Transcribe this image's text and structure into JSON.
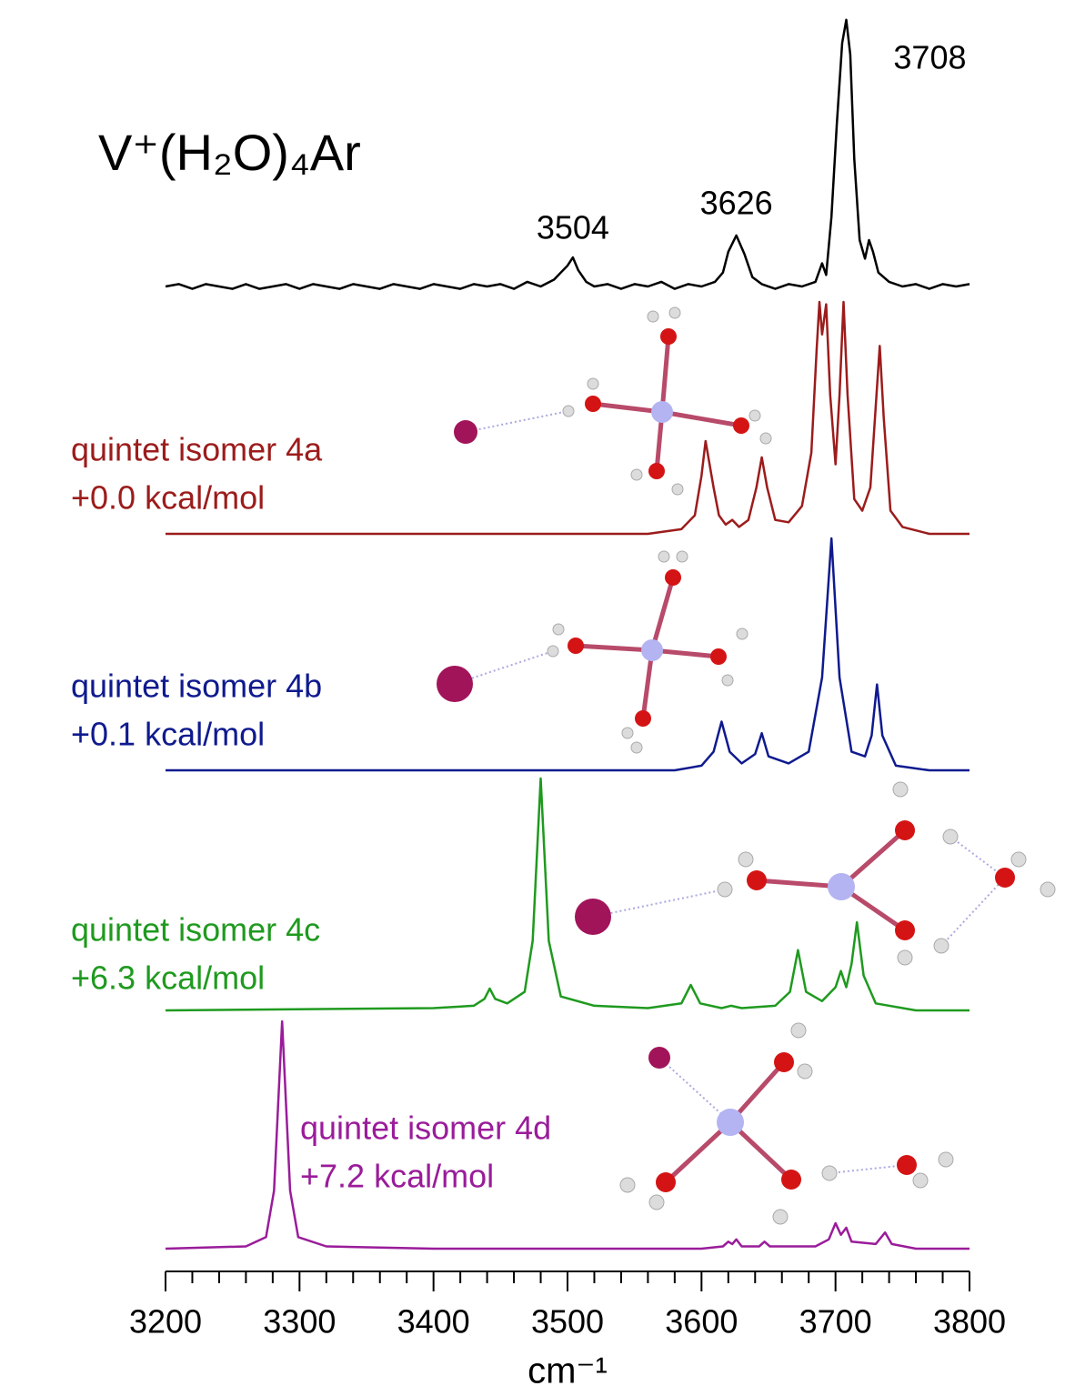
{
  "chart_data": {
    "type": "line",
    "title": "V⁺(H₂O)₄Ar",
    "xlabel": "cm⁻¹",
    "xlim": [
      3200,
      3800
    ],
    "xticks": [
      3200,
      3300,
      3400,
      3500,
      3600,
      3700,
      3800
    ],
    "xminorticks": [
      3220,
      3240,
      3260,
      3280,
      3320,
      3340,
      3360,
      3380,
      3420,
      3440,
      3460,
      3480,
      3520,
      3540,
      3560,
      3580,
      3620,
      3640,
      3660,
      3680,
      3720,
      3740,
      3760,
      3780
    ],
    "annotations": [
      {
        "x": 3504,
        "label": "3504"
      },
      {
        "x": 3626,
        "label": "3626"
      },
      {
        "x": 3708,
        "label": "3708"
      }
    ],
    "series": [
      {
        "color": "#000000",
        "x": [
          3200,
          3210,
          3220,
          3230,
          3240,
          3250,
          3260,
          3270,
          3280,
          3290,
          3300,
          3310,
          3320,
          3330,
          3340,
          3350,
          3360,
          3370,
          3380,
          3390,
          3400,
          3410,
          3420,
          3430,
          3440,
          3450,
          3460,
          3470,
          3480,
          3490,
          3495,
          3500,
          3504,
          3508,
          3514,
          3520,
          3530,
          3540,
          3550,
          3560,
          3570,
          3580,
          3590,
          3600,
          3610,
          3616,
          3620,
          3626,
          3632,
          3638,
          3645,
          3655,
          3665,
          3675,
          3685,
          3690,
          3693,
          3697,
          3701,
          3705,
          3708,
          3711,
          3714,
          3718,
          3722,
          3725,
          3728,
          3732,
          3740,
          3750,
          3760,
          3770,
          3780,
          3790,
          3800
        ],
        "values": [
          0,
          0.01,
          -0.01,
          0.01,
          0,
          -0.01,
          0.01,
          -0.01,
          0,
          0.01,
          -0.01,
          0.01,
          0,
          -0.01,
          0.01,
          0,
          -0.01,
          0.01,
          0,
          -0.01,
          0.01,
          0,
          -0.01,
          0.01,
          0,
          0.01,
          -0.01,
          0.02,
          0,
          0.03,
          0.06,
          0.09,
          0.125,
          0.07,
          0.02,
          0,
          0.01,
          -0.01,
          0.01,
          0,
          0.02,
          -0.01,
          0.01,
          0,
          0.02,
          0.06,
          0.15,
          0.22,
          0.14,
          0.04,
          0.01,
          -0.01,
          0.01,
          0,
          0.02,
          0.1,
          0.05,
          0.3,
          0.7,
          1.05,
          1.15,
          1.0,
          0.55,
          0.2,
          0.12,
          0.2,
          0.15,
          0.06,
          0.02,
          0,
          0.01,
          -0.01,
          0.01,
          0,
          0.01
        ]
      },
      {
        "name": "quintet isomer 4a",
        "energy": "+0.0 kcal/mol",
        "color": "#9c1c1c",
        "x": [
          3200,
          3560,
          3585,
          3595,
          3600,
          3603,
          3606,
          3609,
          3613,
          3618,
          3623,
          3628,
          3635,
          3641,
          3645,
          3649,
          3655,
          3665,
          3675,
          3682,
          3686,
          3688,
          3690,
          3693,
          3696,
          3700,
          3703,
          3706,
          3709,
          3714,
          3720,
          3726,
          3730,
          3733,
          3736,
          3741,
          3750,
          3770,
          3800
        ],
        "values": [
          0,
          0,
          0.02,
          0.08,
          0.25,
          0.4,
          0.3,
          0.2,
          0.08,
          0.04,
          0.06,
          0.03,
          0.06,
          0.2,
          0.33,
          0.2,
          0.06,
          0.05,
          0.12,
          0.35,
          0.8,
          1.0,
          0.86,
          0.99,
          0.6,
          0.3,
          0.6,
          1.0,
          0.6,
          0.15,
          0.1,
          0.2,
          0.55,
          0.81,
          0.5,
          0.1,
          0.03,
          0,
          0
        ]
      },
      {
        "name": "quintet isomer 4b",
        "energy": "+0.1 kcal/mol",
        "color": "#0f1a8e",
        "x": [
          3200,
          3580,
          3600,
          3609,
          3615,
          3621,
          3630,
          3640,
          3645,
          3650,
          3665,
          3680,
          3690,
          3697,
          3703,
          3712,
          3722,
          3727,
          3731,
          3735,
          3745,
          3770,
          3800
        ],
        "values": [
          0,
          0,
          0.02,
          0.08,
          0.21,
          0.08,
          0.03,
          0.07,
          0.16,
          0.06,
          0.03,
          0.08,
          0.4,
          1.0,
          0.4,
          0.08,
          0.06,
          0.15,
          0.37,
          0.15,
          0.02,
          0,
          0
        ]
      },
      {
        "name": "quintet isomer 4c",
        "energy": "+6.3 kcal/mol",
        "color": "#1f9a1f",
        "x": [
          3200,
          3400,
          3430,
          3438,
          3442,
          3446,
          3455,
          3468,
          3474,
          3480,
          3486,
          3495,
          3520,
          3560,
          3585,
          3592,
          3599,
          3615,
          3622,
          3630,
          3655,
          3666,
          3672,
          3678,
          3690,
          3700,
          3704,
          3708,
          3712,
          3716,
          3721,
          3730,
          3760,
          3800
        ],
        "values": [
          0,
          0.01,
          0.02,
          0.05,
          0.094,
          0.05,
          0.03,
          0.08,
          0.3,
          1.0,
          0.3,
          0.06,
          0.02,
          0.01,
          0.03,
          0.11,
          0.03,
          0.01,
          0.02,
          0.01,
          0.02,
          0.08,
          0.26,
          0.08,
          0.04,
          0.1,
          0.17,
          0.1,
          0.2,
          0.38,
          0.15,
          0.03,
          0,
          0
        ]
      },
      {
        "name": "quintet isomer 4d",
        "energy": "+7.2 kcal/mol",
        "color": "#9a1c9a",
        "x": [
          3200,
          3260,
          3275,
          3281,
          3287,
          3293,
          3299,
          3320,
          3400,
          3600,
          3616,
          3620,
          3623,
          3626,
          3630,
          3643,
          3647,
          3651,
          3685,
          3695,
          3700,
          3704,
          3708,
          3712,
          3730,
          3737,
          3742,
          3760,
          3800
        ],
        "values": [
          0,
          0.01,
          0.05,
          0.25,
          0.98,
          0.25,
          0.05,
          0.01,
          0,
          0,
          0.01,
          0.03,
          0.02,
          0.04,
          0.01,
          0.01,
          0.03,
          0.01,
          0.01,
          0.04,
          0.11,
          0.06,
          0.09,
          0.03,
          0.02,
          0.07,
          0.02,
          0,
          0
        ]
      }
    ]
  }
}
